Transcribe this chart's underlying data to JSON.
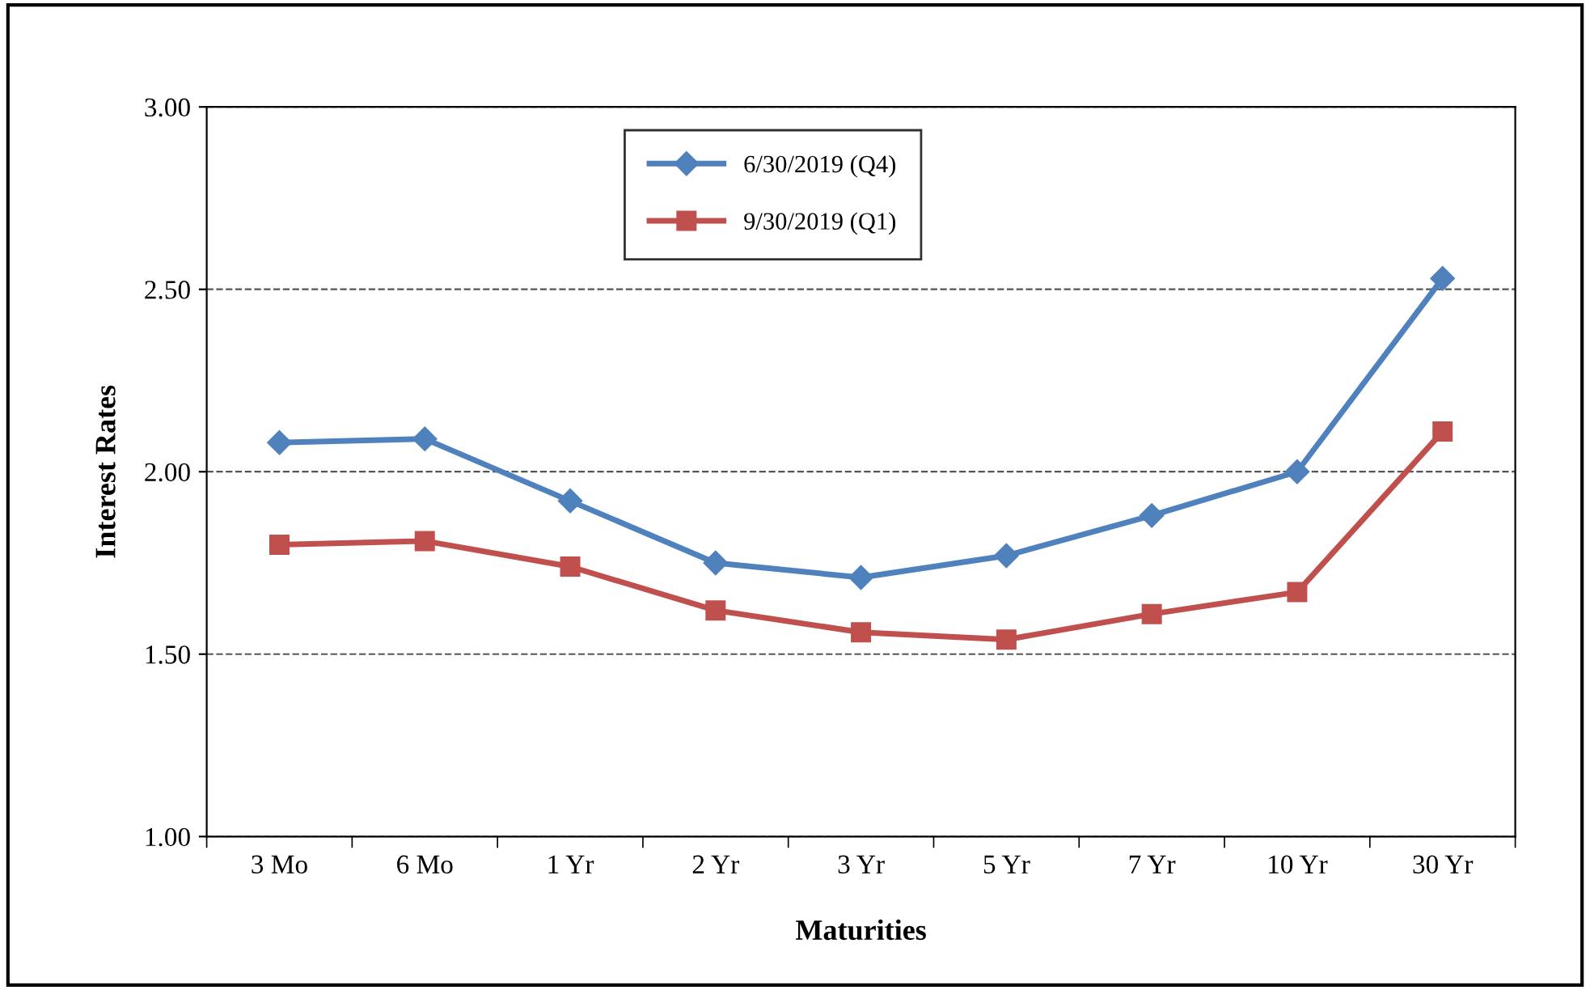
{
  "chart_data": {
    "type": "line",
    "xlabel": "Maturities",
    "ylabel": "Interest Rates",
    "categories": [
      "3 Mo",
      "6 Mo",
      "1 Yr",
      "2 Yr",
      "3 Yr",
      "5 Yr",
      "7 Yr",
      "10 Yr",
      "30 Yr"
    ],
    "series": [
      {
        "name": "6/30/2019 (Q4)",
        "color": "#4f81bd",
        "marker": "diamond",
        "values": [
          2.08,
          2.09,
          1.92,
          1.75,
          1.71,
          1.77,
          1.88,
          2.0,
          2.53
        ]
      },
      {
        "name": "9/30/2019 (Q1)",
        "color": "#c0504d",
        "marker": "square",
        "values": [
          1.8,
          1.81,
          1.74,
          1.62,
          1.56,
          1.54,
          1.61,
          1.67,
          2.11
        ]
      }
    ],
    "ylim": [
      1.0,
      3.0
    ],
    "yticks": [
      {
        "value": 1.0,
        "label": "1.00"
      },
      {
        "value": 1.5,
        "label": "1.50"
      },
      {
        "value": 2.0,
        "label": "2.00"
      },
      {
        "value": 2.5,
        "label": "2.50"
      },
      {
        "value": 3.0,
        "label": "3.00"
      }
    ],
    "grid": "y",
    "legend": "top",
    "line_style": "solid"
  }
}
